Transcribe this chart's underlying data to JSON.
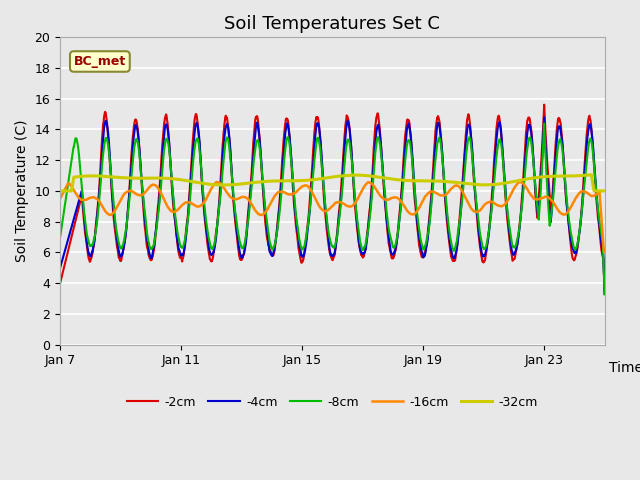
{
  "title": "Soil Temperatures Set C",
  "xlabel": "Time",
  "ylabel": "Soil Temperature (C)",
  "ylim": [
    0,
    20
  ],
  "annotation": "BC_met",
  "legend": [
    "-2cm",
    "-4cm",
    "-8cm",
    "-16cm",
    "-32cm"
  ],
  "line_colors": [
    "#dd0000",
    "#0000cc",
    "#00bb00",
    "#ff8800",
    "#cccc00"
  ],
  "line_widths": [
    1.5,
    1.5,
    1.5,
    1.8,
    2.2
  ],
  "background_color": "#e8e8e8",
  "grid_color": "#ffffff",
  "fig_facecolor": "#e8e8e8",
  "title_fontsize": 13,
  "axis_label_fontsize": 10,
  "tick_label_fontsize": 9,
  "x_tick_positions": [
    0,
    4,
    8,
    12,
    16
  ],
  "x_tick_labels": [
    "Jan 7",
    "Jan 11",
    "Jan 15",
    "Jan 19",
    "Jan 23"
  ]
}
